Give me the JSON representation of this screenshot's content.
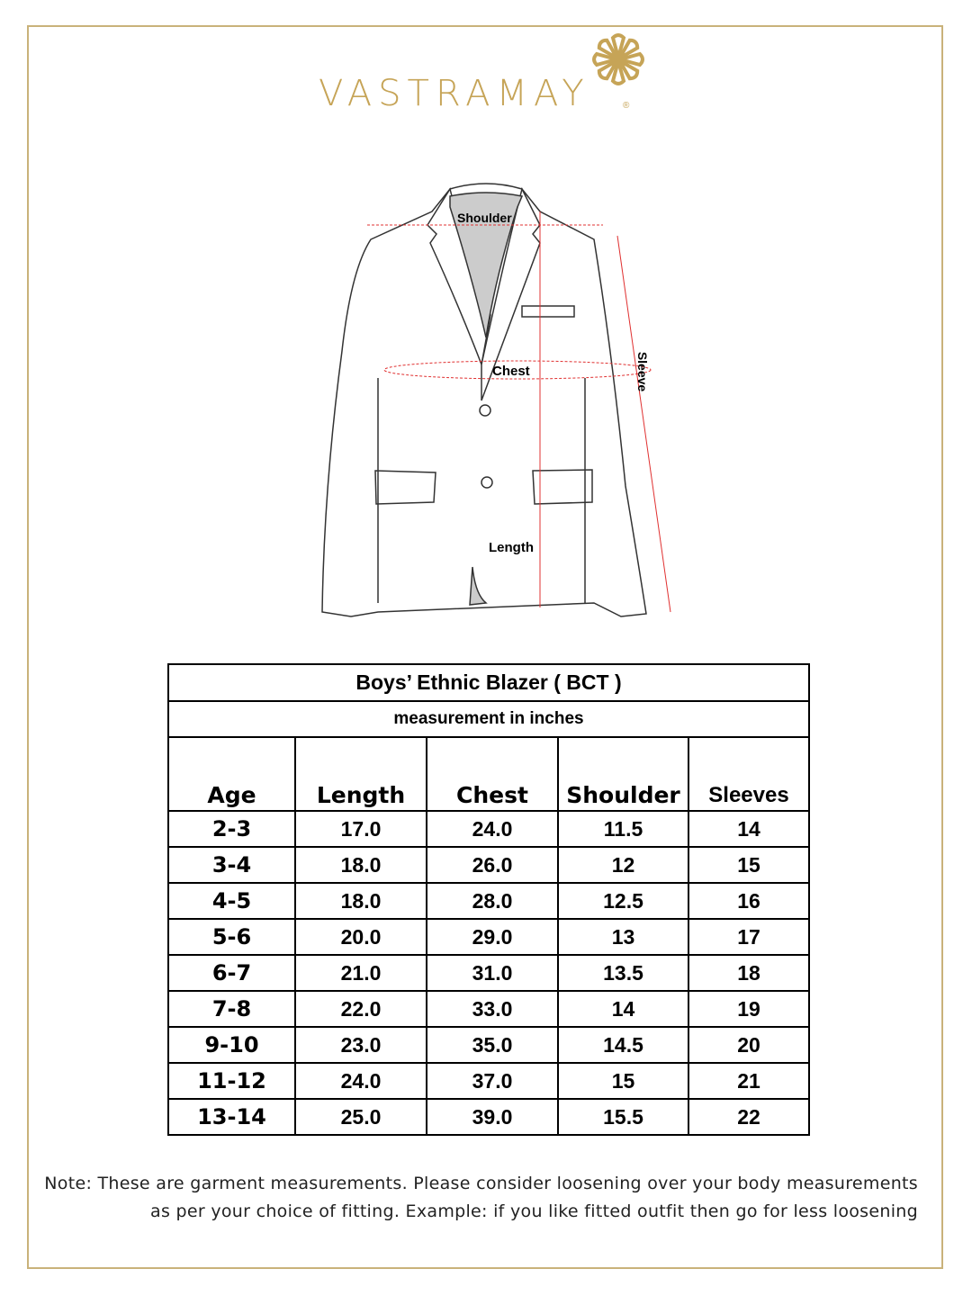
{
  "brand": {
    "name": "VASTRAMAY",
    "registered": "®",
    "color": "#c6a457"
  },
  "diagram": {
    "labels": {
      "shoulder": "Shoulder",
      "chest": "Chest",
      "length": "Length",
      "sleeve": "Sleeve"
    },
    "measure_line_color": "#e03030"
  },
  "table": {
    "title": "Boys’ Ethnic Blazer ( BCT )",
    "subtitle": "measurement in inches",
    "columns": [
      "Age",
      "Length",
      "Chest",
      "Shoulder",
      "Sleeves"
    ],
    "rows": [
      [
        "2-3",
        "17.0",
        "24.0",
        "11.5",
        "14"
      ],
      [
        "3-4",
        "18.0",
        "26.0",
        "12",
        "15"
      ],
      [
        "4-5",
        "18.0",
        "28.0",
        "12.5",
        "16"
      ],
      [
        "5-6",
        "20.0",
        "29.0",
        "13",
        "17"
      ],
      [
        "6-7",
        "21.0",
        "31.0",
        "13.5",
        "18"
      ],
      [
        "7-8",
        "22.0",
        "33.0",
        "14",
        "19"
      ],
      [
        "9-10",
        "23.0",
        "35.0",
        "14.5",
        "20"
      ],
      [
        "11-12",
        "24.0",
        "37.0",
        "15",
        "21"
      ],
      [
        "13-14",
        "25.0",
        "39.0",
        "15.5",
        "22"
      ]
    ]
  },
  "note": {
    "line1": "Note: These are garment measurements. Please consider loosening over your body measurements",
    "line2": "as per your choice of fitting. Example: if you like fitted outfit then go for less loosening"
  }
}
